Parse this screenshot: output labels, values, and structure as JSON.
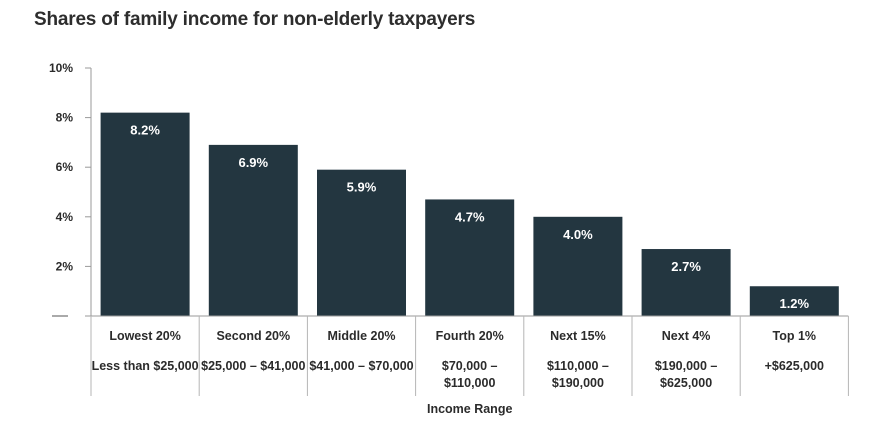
{
  "chart_data": {
    "type": "bar",
    "title": "Shares of family income for non-elderly taxpayers",
    "xlabel": "Income Range",
    "ylabel": "",
    "ylim": [
      0,
      10
    ],
    "yticks": [
      "",
      "2%",
      "4%",
      "6%",
      "8%",
      "10%"
    ],
    "grid": false,
    "categories": [
      "Lowest 20%",
      "Second 20%",
      "Middle 20%",
      "Fourth 20%",
      "Next 15%",
      "Next 4%",
      "Top 1%"
    ],
    "income_ranges": [
      [
        "Less than $25,000"
      ],
      [
        "$25,000 – $41,000"
      ],
      [
        "$41,000 – $70,000"
      ],
      [
        "$70,000 –",
        "$110,000"
      ],
      [
        "$110,000 –",
        "$190,000"
      ],
      [
        "$190,000 –",
        "$625,000"
      ],
      [
        "+$625,000"
      ]
    ],
    "values": [
      8.2,
      6.9,
      5.9,
      4.7,
      4.0,
      2.7,
      1.2
    ],
    "data_labels": [
      "8.2%",
      "6.9%",
      "5.9%",
      "4.7%",
      "4.0%",
      "2.7%",
      "1.2%"
    ],
    "colors": {
      "bar": "#233640",
      "axis": "#9a9a9a",
      "text": "#2b2b2b",
      "label": "#ffffff"
    }
  }
}
